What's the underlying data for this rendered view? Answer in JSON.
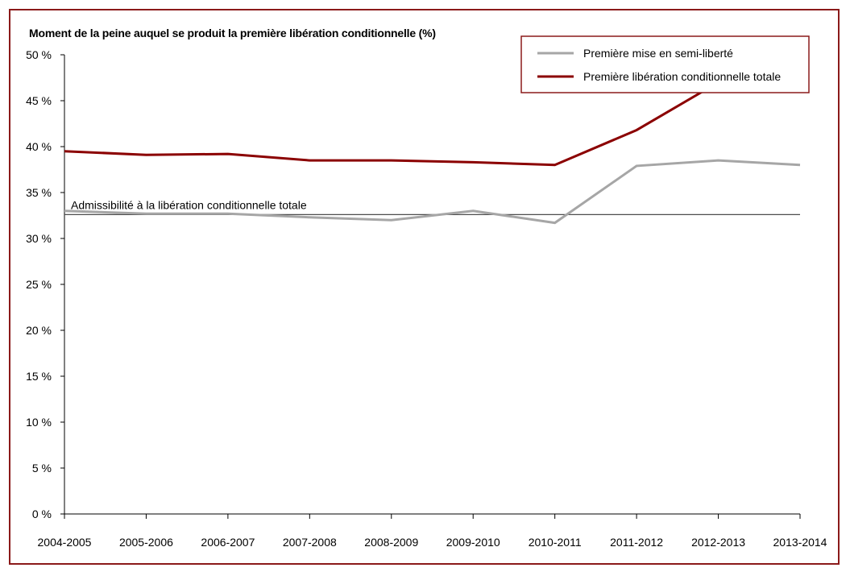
{
  "chart_data": {
    "type": "line",
    "title": "Moment de la peine auquel se produit la première libération conditionnelle (%)",
    "categories": [
      "2004-2005",
      "2005-2006",
      "2006-2007",
      "2007-2008",
      "2008-2009",
      "2009-2010",
      "2010-2011",
      "2011-2012",
      "2012-2013",
      "2013-2014"
    ],
    "series": [
      {
        "name": "Première mise en semi-liberté",
        "color": "#a6a6a6",
        "values": [
          33.0,
          32.7,
          32.7,
          32.3,
          32.0,
          33.0,
          31.7,
          37.9,
          38.5,
          38.0
        ]
      },
      {
        "name": "Première libération conditionnelle totale",
        "color": "#8b0000",
        "values": [
          39.5,
          39.1,
          39.2,
          38.5,
          38.5,
          38.3,
          38.0,
          41.8,
          47.0,
          47.5
        ]
      }
    ],
    "reference_line": {
      "label": "Admissibilité à la libération conditionnelle totale",
      "value": 32.6,
      "color": "#4d4d4d"
    },
    "ylim": [
      0,
      50
    ],
    "yticks": [
      0,
      5,
      10,
      15,
      20,
      25,
      30,
      35,
      40,
      45,
      50
    ],
    "ytick_labels": [
      "0 %",
      "5 %",
      "10 %",
      "15 %",
      "20 %",
      "25 %",
      "30 %",
      "35 %",
      "40 %",
      "45 %",
      "50 %"
    ],
    "grid": false,
    "legend_position": "top-right",
    "frame_color": "#8b1a1a"
  }
}
